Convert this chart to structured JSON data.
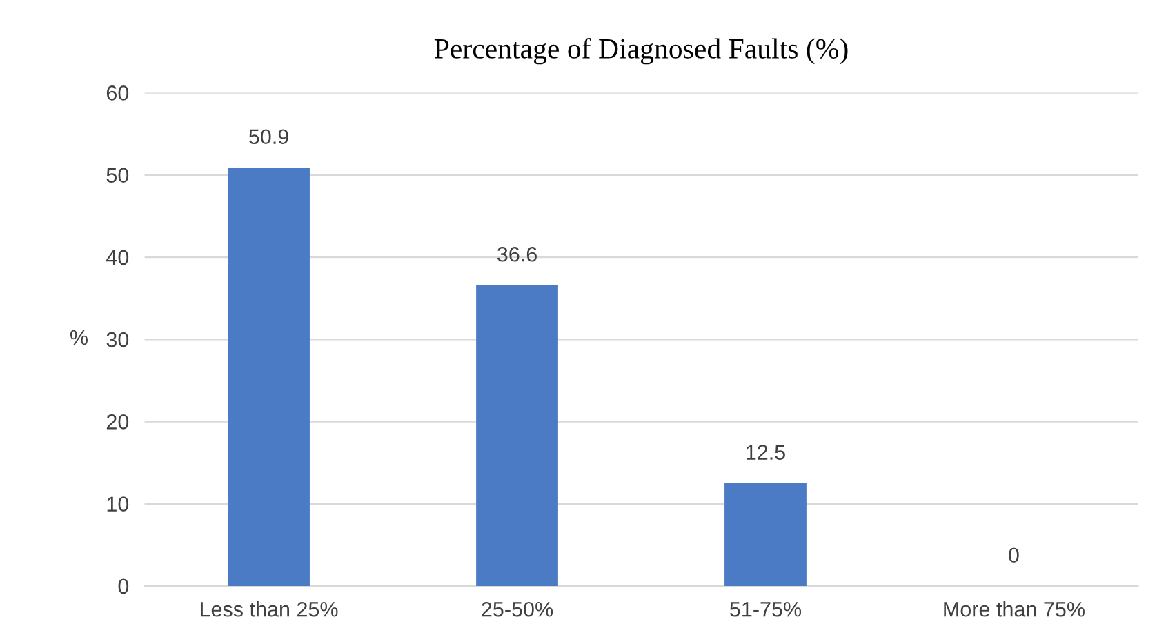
{
  "chart_data": {
    "type": "bar",
    "title": "Percentage of Diagnosed Faults (%)",
    "ylabel": "%",
    "categories": [
      "Less than 25%",
      "25-50%",
      "51-75%",
      "More than 75%"
    ],
    "values": [
      50.9,
      36.6,
      12.5,
      0
    ],
    "color": "#4a7bc4",
    "ylim": [
      0,
      60
    ],
    "yticks": [
      0,
      10,
      20,
      30,
      40,
      50,
      60
    ],
    "grid": "y",
    "data_labels": true,
    "legend": false
  }
}
